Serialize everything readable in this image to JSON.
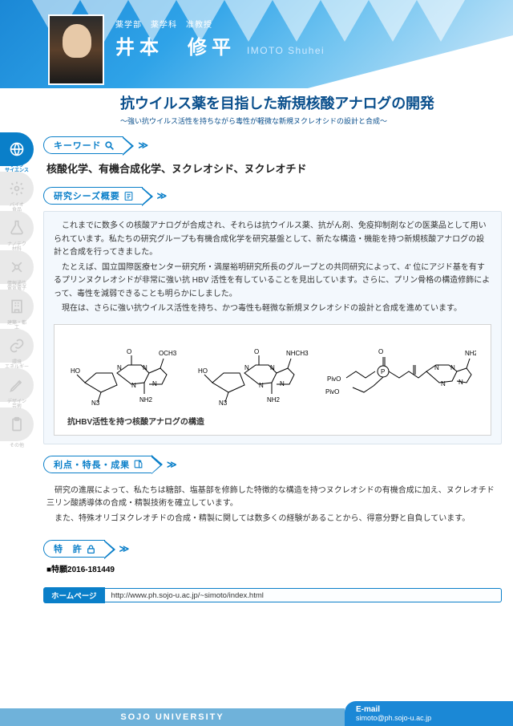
{
  "colors": {
    "primary_blue": "#0a7fc9",
    "header_grad_from": "#1b88d6",
    "header_grad_to": "#cfe9f9",
    "panel_bg": "#f7fbff",
    "panel_border": "#d9e3ec",
    "rail_inactive": "#e9e9e9",
    "footer_light": "#6fb2da"
  },
  "header": {
    "affiliation": "薬学部　薬学科　准教授",
    "name_ja": "井本　修平",
    "name_en": "IMOTO  Shuhei"
  },
  "title": {
    "main": "抗ウイルス薬を目指した新規核酸アナログの開発",
    "sub": "〜強い抗ウイルス活性を持ちながら毒性が軽微な新規ヌクレオシドの設計と合成〜"
  },
  "rail": {
    "items": [
      {
        "label": "ライフ\nサイエンス",
        "active": true,
        "icon": "globe"
      },
      {
        "label": "バイオ\n食品",
        "active": false,
        "icon": "gear"
      },
      {
        "label": "ナノテク\n材料",
        "active": false,
        "icon": "flask"
      },
      {
        "label": "情報通信\n電気電子",
        "active": false,
        "icon": "satellite"
      },
      {
        "label": "建築・都\n工",
        "active": false,
        "icon": "building"
      },
      {
        "label": "環境\nエネルギー",
        "active": false,
        "icon": "link"
      },
      {
        "label": "デザイン\n芸術",
        "active": false,
        "icon": "pencil"
      },
      {
        "label": "その他",
        "active": false,
        "icon": "clipboard"
      }
    ]
  },
  "sections": {
    "keywords": {
      "label": "キーワード",
      "icon": "search",
      "text": "核酸化学、有機合成化学、ヌクレオシド、ヌクレオチド"
    },
    "overview": {
      "label": "研究シーズ概要",
      "icon": "document",
      "paragraphs": [
        "これまでに数多くの核酸アナログが合成され、それらは抗ウイルス薬、抗がん剤、免疫抑制剤などの医薬品として用いられています。私たちの研究グループも有機合成化学を研究基盤として、新たな構造・機能を持つ新規核酸アナログの設計と合成を行ってきました。",
        "たとえば、国立国際医療センター研究所・満屋裕明研究所長のグループとの共同研究によって、4' 位にアジド基を有するプリンヌクレオシドが非常に強い抗 HBV 活性を有していることを見出しています。さらに、プリン骨格の構造修飾によって、毒性を減弱できることも明らかにしました。",
        "現在は、さらに強い抗ウイルス活性を持ち、かつ毒性も軽微な新規ヌクレオシドの設計と合成を進めています。"
      ],
      "figure_caption": "抗HBV活性を持つ核酸アナログの構造",
      "molecules": [
        {
          "top": "OCH3",
          "left": "HO",
          "n3": "N3",
          "nh2": "NH2"
        },
        {
          "top": "NHCH3",
          "left": "HO",
          "n3": "N3",
          "nh2": "NH2"
        },
        {
          "top": "NH2",
          "left": "PivO",
          "po": "P",
          "o2": "O",
          "o3": "O",
          "o1": "PivO"
        }
      ]
    },
    "merits": {
      "label": "利点・特長・成果",
      "icon": "note",
      "paragraphs": [
        "研究の進展によって、私たちは糖部、塩基部を修飾した特徴的な構造を持つヌクレオシドの有機合成に加え、ヌクレオチド三リン酸誘導体の合成・精製技術を確立しています。",
        "また、特殊オリゴヌクレオチドの合成・精製に関しては数多くの経験があることから、得意分野と自負しています。"
      ]
    },
    "patent": {
      "label": "特　許",
      "icon": "lock",
      "text": "■特願2016-181449"
    },
    "homepage": {
      "tag": "ホームページ",
      "url": "http://www.ph.sojo-u.ac.jp/~simoto/index.html"
    }
  },
  "footer": {
    "university": "SOJO UNIVERSITY",
    "email_label": "E-mail",
    "email": "simoto@ph.sojo-u.ac.jp"
  }
}
